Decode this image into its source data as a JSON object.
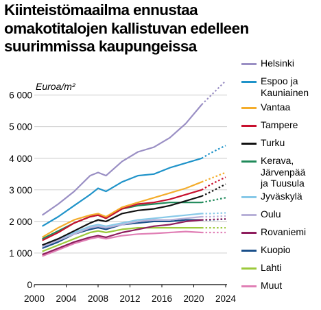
{
  "title_lines": [
    "Kiinteistömaailma ennustaa",
    "omakotitalojen kallistuvan edelleen",
    "suurimmissa kaupungeissa"
  ],
  "chart_data": {
    "type": "line",
    "title": "Kiinteistömaailma ennustaa omakotitalojen kallistuvan edelleen suurimmissa kaupungeissa",
    "ylabel": "Euroa/m²",
    "xlabel": "",
    "xlim": [
      2000,
      2024
    ],
    "ylim": [
      0,
      6600
    ],
    "x_ticks": [
      "2000",
      "2004",
      "2008",
      "2012",
      "2016",
      "2020",
      "2024"
    ],
    "y_ticks": [
      "0",
      "1 000",
      "2 000",
      "3 000",
      "4 000",
      "5 000",
      "6 000"
    ],
    "grid": "horizontal",
    "legend_position": "right",
    "forecast_start": 2021,
    "x": [
      2001,
      2003,
      2005,
      2007,
      2008,
      2009,
      2011,
      2013,
      2015,
      2017,
      2019,
      2021,
      2022,
      2023,
      2024
    ],
    "series": [
      {
        "name": "Helsinki",
        "color": "#9a8fc4",
        "values": [
          2200,
          2550,
          2950,
          3450,
          3550,
          3450,
          3900,
          4200,
          4350,
          4650,
          5100,
          5700,
          5950,
          6200,
          6450
        ]
      },
      {
        "name": "Espoo ja Kauniainen",
        "color": "#1f93c9",
        "values": [
          1850,
          2150,
          2500,
          2850,
          3050,
          2950,
          3250,
          3450,
          3500,
          3700,
          3850,
          4000,
          4150,
          4280,
          4400
        ]
      },
      {
        "name": "Vantaa",
        "color": "#f4ad2c",
        "values": [
          1500,
          1800,
          2050,
          2200,
          2250,
          2150,
          2450,
          2600,
          2750,
          2900,
          3050,
          3250,
          3350,
          3450,
          3550
        ]
      },
      {
        "name": "Tampere",
        "color": "#c8102e",
        "values": [
          1400,
          1650,
          1950,
          2150,
          2200,
          2100,
          2400,
          2550,
          2600,
          2700,
          2850,
          3000,
          3150,
          3280,
          3400
        ]
      },
      {
        "name": "Turku",
        "color": "#111111",
        "values": [
          1250,
          1450,
          1700,
          1950,
          2050,
          2000,
          2250,
          2350,
          2400,
          2500,
          2650,
          2800,
          2920,
          3050,
          3180
        ]
      },
      {
        "name": "Kerava, Järvenpää ja Tuusula",
        "color": "#1f8a5a",
        "values": [
          1450,
          1700,
          1950,
          2150,
          2200,
          2100,
          2400,
          2500,
          2550,
          2600,
          2600,
          2600,
          2650,
          2700,
          2750
        ]
      },
      {
        "name": "Jyväskylä",
        "color": "#88c9e8",
        "values": [
          1250,
          1450,
          1650,
          1850,
          1900,
          1850,
          1950,
          2050,
          2100,
          2150,
          2200,
          2250,
          2250,
          2260,
          2270
        ]
      },
      {
        "name": "Oulu",
        "color": "#b8b1d8",
        "values": [
          1200,
          1400,
          1600,
          1800,
          1850,
          1800,
          1900,
          2000,
          2050,
          2050,
          2100,
          2150,
          2150,
          2160,
          2170
        ]
      },
      {
        "name": "Rovaniemi",
        "color": "#8e1d5d",
        "values": [
          950,
          1150,
          1350,
          1500,
          1550,
          1500,
          1650,
          1750,
          1850,
          1900,
          2000,
          2050,
          2060,
          2070,
          2080
        ]
      },
      {
        "name": "Kuopio",
        "color": "#1a4f8a",
        "values": [
          1150,
          1350,
          1600,
          1750,
          1800,
          1750,
          1900,
          1950,
          2000,
          2000,
          2050,
          2050,
          2050,
          2060,
          2070
        ]
      },
      {
        "name": "Lahti",
        "color": "#9cc93b",
        "values": [
          1050,
          1250,
          1450,
          1650,
          1700,
          1650,
          1750,
          1800,
          1800,
          1800,
          1800,
          1800,
          1800,
          1800,
          1800
        ]
      },
      {
        "name": "Muut",
        "color": "#e07fb5",
        "values": [
          900,
          1100,
          1300,
          1450,
          1500,
          1450,
          1550,
          1600,
          1620,
          1650,
          1680,
          1650,
          1650,
          1650,
          1650
        ]
      }
    ]
  }
}
